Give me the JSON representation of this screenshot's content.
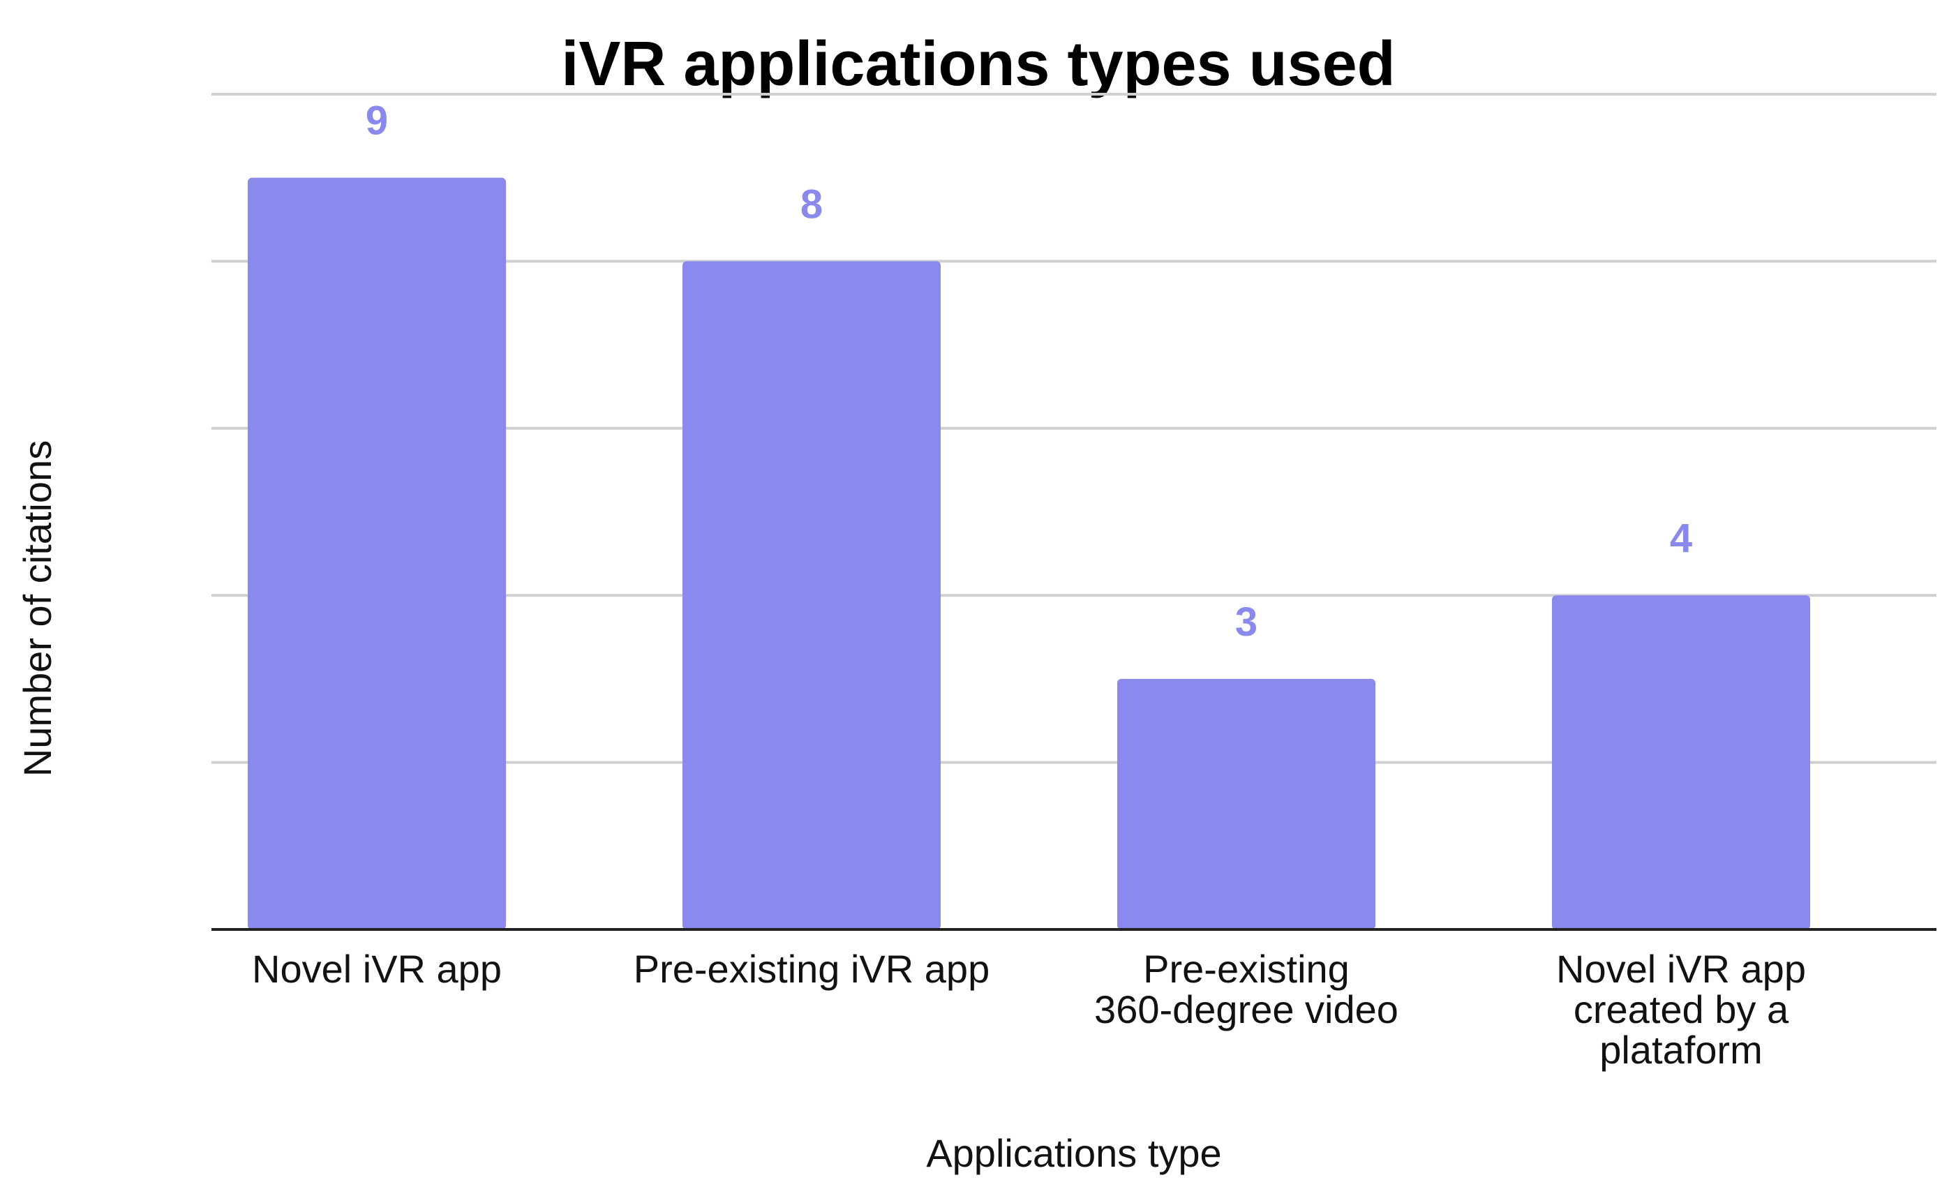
{
  "chart_data": {
    "type": "bar",
    "title": "iVR applications types used",
    "xlabel": "Applications type",
    "ylabel": "Number of citations",
    "categories": [
      [
        "Novel iVR app"
      ],
      [
        "Pre-existing iVR app"
      ],
      [
        "Pre-existing",
        "360-degree video"
      ],
      [
        "Novel iVR app",
        "created by a",
        "plataform"
      ]
    ],
    "values": [
      9,
      8,
      3,
      4
    ],
    "ylim": [
      0,
      10
    ],
    "grid": true,
    "legend": "none",
    "colors": {
      "bar": "#8a8aee",
      "data_label": "#8a8aee",
      "grid": "#d0d0d0",
      "axis": "#222222"
    }
  }
}
